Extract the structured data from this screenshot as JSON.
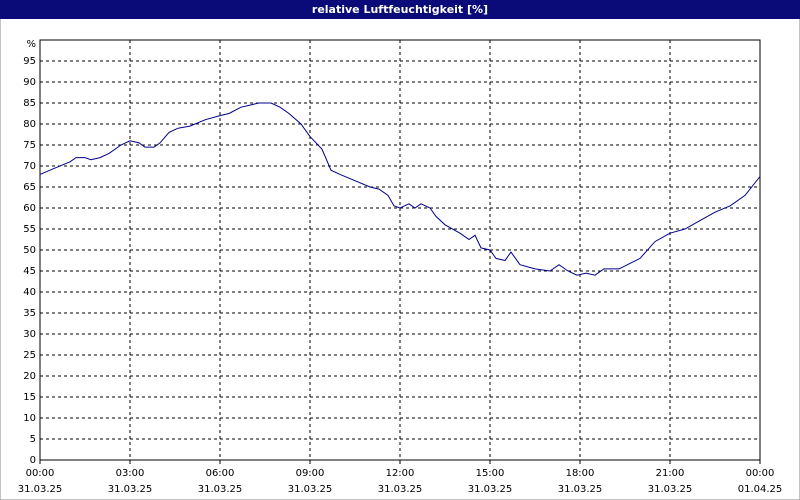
{
  "chart_data": {
    "type": "line",
    "title": "relative Luftfeuchtigkeit [%]",
    "ylabel": "%",
    "x": [
      0,
      0.5,
      1,
      1.2,
      1.5,
      1.7,
      2,
      2.3,
      2.7,
      3,
      3.3,
      3.5,
      3.8,
      4,
      4.3,
      4.6,
      5,
      5.5,
      6,
      6.3,
      6.7,
      7,
      7.3,
      7.7,
      8,
      8.3,
      8.7,
      9,
      9.4,
      9.7,
      10,
      10.5,
      11,
      11.3,
      11.6,
      11.8,
      12,
      12.3,
      12.5,
      12.7,
      13,
      13.2,
      13.5,
      14,
      14.3,
      14.5,
      14.7,
      15,
      15.2,
      15.5,
      15.7,
      16,
      16.5,
      17,
      17.3,
      17.6,
      17.9,
      18.2,
      18.5,
      18.8,
      19.3,
      20,
      20.5,
      21,
      21.5,
      22,
      22.5,
      23,
      23.5,
      24
    ],
    "series": [
      {
        "name": "relative Luftfeuchtigkeit",
        "color": "#00008b",
        "values": [
          68,
          69.5,
          71,
          72,
          72,
          71.5,
          72,
          73,
          75,
          76,
          75.5,
          74.5,
          74.5,
          75.5,
          78,
          79,
          79.5,
          81,
          82,
          82.5,
          84,
          84.5,
          85,
          85,
          84,
          82.5,
          80,
          77,
          74,
          69,
          68,
          66.5,
          65,
          64.5,
          63,
          60.5,
          60,
          61,
          60,
          61,
          60,
          58,
          56,
          54,
          52.5,
          53.5,
          50.5,
          50,
          48,
          47.5,
          49.5,
          46.5,
          45.5,
          45,
          46.5,
          45,
          44,
          44.5,
          44,
          45.5,
          45.5,
          48,
          52,
          54,
          55,
          57,
          59,
          60.5,
          63,
          67.5
        ]
      }
    ],
    "xlim": [
      0,
      24
    ],
    "xticks": [
      {
        "value": 0,
        "label": "00:00"
      },
      {
        "value": 3,
        "label": "03:00"
      },
      {
        "value": 6,
        "label": "06:00"
      },
      {
        "value": 9,
        "label": "09:00"
      },
      {
        "value": 12,
        "label": "12:00"
      },
      {
        "value": 15,
        "label": "15:00"
      },
      {
        "value": 18,
        "label": "18:00"
      },
      {
        "value": 21,
        "label": "21:00"
      },
      {
        "value": 24,
        "label": "00:00"
      }
    ],
    "xtick_dates": [
      "31.03.25",
      "31.03.25",
      "31.03.25",
      "31.03.25",
      "31.03.25",
      "31.03.25",
      "31.03.25",
      "31.03.25",
      "01.04.25"
    ],
    "ylim": [
      0,
      100
    ],
    "yticks": [
      0,
      5,
      10,
      15,
      20,
      25,
      30,
      35,
      40,
      45,
      50,
      55,
      60,
      65,
      70,
      75,
      80,
      85,
      90,
      95
    ],
    "grid": true
  }
}
